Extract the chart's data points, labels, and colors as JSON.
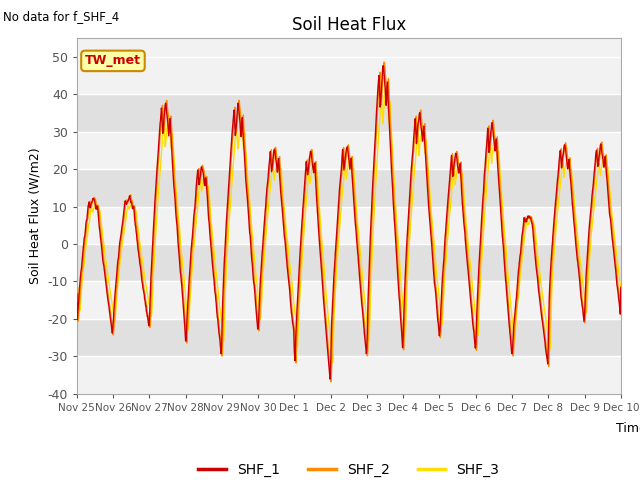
{
  "title": "Soil Heat Flux",
  "top_left_text": "No data for f_SHF_4",
  "tw_met_label": "TW_met",
  "ylabel": "Soil Heat Flux (W/m2)",
  "xlabel": "Time",
  "ylim": [
    -40,
    55
  ],
  "yticks": [
    -40,
    -30,
    -20,
    -10,
    0,
    10,
    20,
    30,
    40,
    50
  ],
  "color_shf1": "#cc0000",
  "color_shf2": "#ff8c00",
  "color_shf3": "#ffdd00",
  "bg_color": "#ffffff",
  "plot_bg_light": "#f2f2f2",
  "plot_bg_dark": "#e0e0e0",
  "legend_labels": [
    "SHF_1",
    "SHF_2",
    "SHF_3"
  ],
  "x_tick_labels": [
    "Nov 25",
    "Nov 26",
    "Nov 27",
    "Nov 28",
    "Nov 29",
    "Nov 30",
    "Dec 1",
    "Dec 2",
    "Dec 3",
    "Dec 4",
    "Dec 5",
    "Dec 6",
    "Dec 7",
    "Dec 8",
    "Dec 9",
    "Dec 10"
  ],
  "n_days": 15,
  "samples_per_day": 144,
  "day_peaks": [
    13,
    13,
    39,
    21,
    38,
    26,
    25,
    27,
    49,
    36,
    25,
    33,
    8,
    27,
    27
  ],
  "day_troughs": [
    -25,
    -23,
    -24,
    -31,
    -24,
    -25,
    -38,
    -31,
    -30,
    -25,
    -29,
    -30,
    -33,
    -22,
    -19
  ],
  "shf2_lag_samples": 4,
  "shf3_lag_samples": 10,
  "shf2_scale": 1.02,
  "shf3_scale": 0.88
}
